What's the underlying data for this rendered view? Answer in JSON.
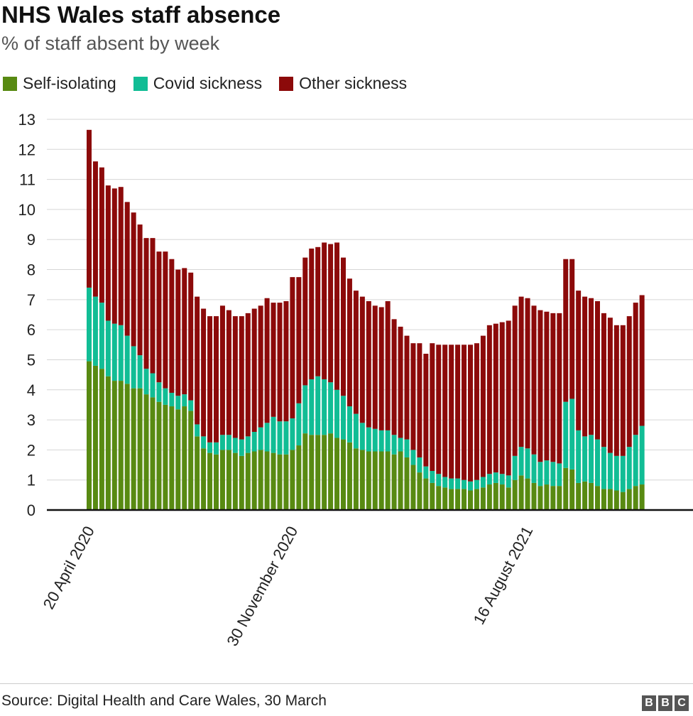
{
  "header": {
    "title": "NHS Wales staff absence",
    "subtitle": "% of staff absent by week"
  },
  "legend": [
    {
      "label": "Self-isolating",
      "color": "#588a12"
    },
    {
      "label": "Covid sickness",
      "color": "#11bd95"
    },
    {
      "label": "Other sickness",
      "color": "#8c0a0a"
    }
  ],
  "footer": {
    "source": "Source: Digital Health and Care Wales, 30 March",
    "logo": [
      "B",
      "B",
      "C"
    ]
  },
  "chart_data": {
    "type": "bar",
    "stacked": true,
    "ylim": [
      0,
      13
    ],
    "yticks": [
      0,
      1,
      2,
      3,
      4,
      5,
      6,
      7,
      8,
      9,
      10,
      11,
      12,
      13
    ],
    "grid": true,
    "xlabel": "",
    "ylabel": "",
    "x_tick_labels": [
      {
        "index": 0,
        "label": "20 April 2020"
      },
      {
        "index": 32,
        "label": "30 November 2020"
      },
      {
        "index": 69,
        "label": "16 August 2021"
      }
    ],
    "series": [
      {
        "name": "Self-isolating",
        "color": "#588a12",
        "values": [
          4.95,
          4.8,
          4.7,
          4.45,
          4.3,
          4.3,
          4.2,
          4.05,
          4.05,
          3.85,
          3.75,
          3.6,
          3.5,
          3.45,
          3.35,
          3.45,
          3.3,
          2.45,
          2.05,
          1.9,
          1.85,
          2.0,
          2.0,
          1.9,
          1.8,
          1.9,
          1.95,
          2.0,
          1.95,
          1.9,
          1.85,
          1.85,
          2.0,
          2.15,
          2.55,
          2.5,
          2.5,
          2.5,
          2.55,
          2.4,
          2.35,
          2.25,
          2.05,
          2.0,
          1.95,
          1.95,
          1.95,
          1.95,
          1.85,
          1.95,
          1.75,
          1.5,
          1.25,
          1.05,
          0.9,
          0.8,
          0.75,
          0.7,
          0.7,
          0.7,
          0.65,
          0.7,
          0.75,
          0.85,
          0.9,
          0.85,
          0.75,
          1.0,
          1.15,
          1.05,
          0.9,
          0.8,
          0.85,
          0.8,
          0.8,
          1.4,
          1.35,
          0.9,
          0.95,
          0.9,
          0.8,
          0.7,
          0.7,
          0.65,
          0.6,
          0.7,
          0.8,
          0.85
        ]
      },
      {
        "name": "Covid sickness",
        "color": "#11bd95",
        "values": [
          2.45,
          2.3,
          2.2,
          1.85,
          1.9,
          1.85,
          1.6,
          1.4,
          1.1,
          0.85,
          0.8,
          0.65,
          0.55,
          0.45,
          0.45,
          0.4,
          0.35,
          0.4,
          0.4,
          0.35,
          0.4,
          0.5,
          0.5,
          0.5,
          0.55,
          0.55,
          0.65,
          0.75,
          0.95,
          1.2,
          1.1,
          1.1,
          1.05,
          1.4,
          1.6,
          1.85,
          1.95,
          1.85,
          1.7,
          1.6,
          1.45,
          1.2,
          1.15,
          0.9,
          0.8,
          0.75,
          0.7,
          0.7,
          0.65,
          0.45,
          0.6,
          0.5,
          0.5,
          0.4,
          0.4,
          0.4,
          0.35,
          0.35,
          0.35,
          0.3,
          0.3,
          0.3,
          0.35,
          0.35,
          0.35,
          0.35,
          0.4,
          0.8,
          0.95,
          1.0,
          0.95,
          0.8,
          0.8,
          0.8,
          0.75,
          2.2,
          2.35,
          1.75,
          1.5,
          1.6,
          1.55,
          1.4,
          1.2,
          1.15,
          1.2,
          1.4,
          1.7,
          1.95
        ]
      },
      {
        "name": "Other sickness",
        "color": "#8c0a0a",
        "values": [
          5.25,
          4.5,
          4.5,
          4.5,
          4.5,
          4.6,
          4.45,
          4.45,
          4.35,
          4.35,
          4.5,
          4.35,
          4.55,
          4.45,
          4.2,
          4.2,
          4.25,
          4.25,
          4.25,
          4.2,
          4.2,
          4.3,
          4.15,
          4.05,
          4.1,
          4.1,
          4.1,
          4.05,
          4.15,
          3.8,
          3.95,
          4.0,
          4.7,
          4.2,
          4.25,
          4.35,
          4.3,
          4.55,
          4.6,
          4.9,
          4.6,
          4.25,
          4.1,
          4.2,
          4.2,
          4.1,
          4.1,
          4.3,
          3.85,
          3.7,
          3.45,
          3.55,
          3.8,
          3.75,
          4.25,
          4.3,
          4.4,
          4.45,
          4.45,
          4.5,
          4.55,
          4.55,
          4.7,
          4.95,
          4.95,
          5.05,
          5.15,
          5.0,
          5.0,
          5.0,
          4.95,
          5.05,
          4.95,
          4.95,
          5.0,
          4.75,
          4.65,
          4.65,
          4.65,
          4.55,
          4.6,
          4.45,
          4.5,
          4.35,
          4.35,
          4.35,
          4.4,
          4.35
        ]
      }
    ]
  }
}
